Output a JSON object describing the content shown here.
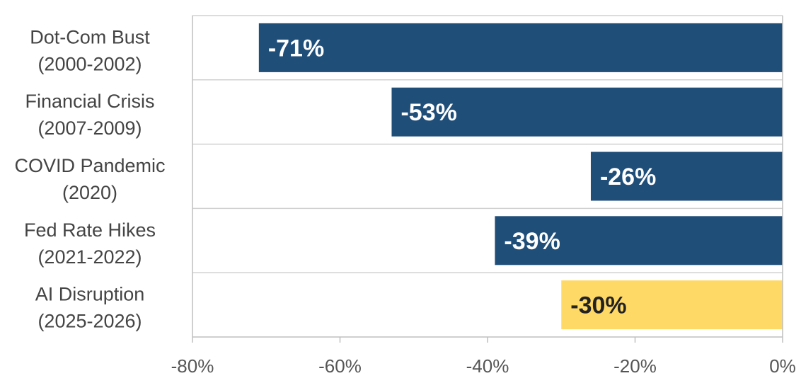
{
  "chart_data": {
    "type": "bar",
    "orientation": "horizontal",
    "categories": [
      [
        "Dot-Com Bust",
        "(2000-2002)"
      ],
      [
        "Financial Crisis",
        "(2007-2009)"
      ],
      [
        "COVID Pandemic",
        "(2020)"
      ],
      [
        "Fed Rate Hikes",
        "(2021-2022)"
      ],
      [
        "AI Disruption",
        "(2025-2026)"
      ]
    ],
    "values": [
      -71,
      -53,
      -26,
      -39,
      -30
    ],
    "data_labels": [
      "-71%",
      "-53%",
      "-26%",
      "-39%",
      "-30%"
    ],
    "bar_colors": [
      "#1f4e79",
      "#1f4e79",
      "#1f4e79",
      "#1f4e79",
      "#ffd966"
    ],
    "label_colors": [
      "#ffffff",
      "#ffffff",
      "#ffffff",
      "#ffffff",
      "#222222"
    ],
    "xlim": [
      -80,
      0
    ],
    "x_ticks": [
      -80,
      -60,
      -40,
      -20,
      0
    ],
    "x_tick_labels": [
      "-80%",
      "-60%",
      "-40%",
      "-20%",
      "0%"
    ],
    "grid": "horizontal separators between categories",
    "legend": "none"
  }
}
